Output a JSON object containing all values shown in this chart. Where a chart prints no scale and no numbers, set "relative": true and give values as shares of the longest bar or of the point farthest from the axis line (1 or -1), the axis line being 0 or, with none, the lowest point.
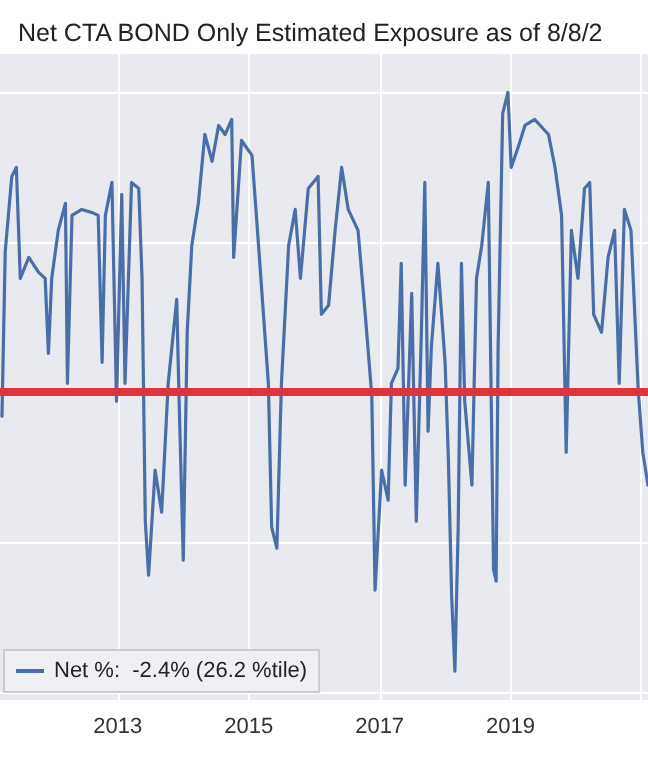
{
  "chart_data": {
    "type": "line",
    "title": "Net CTA BOND Only Estimated Exposure as of 8/8/2",
    "relative": true,
    "grid": true,
    "legend": "bottom left",
    "marker": "none",
    "line_style": "solid",
    "xlim": [
      2011.2,
      2021.1
    ],
    "xticks": [
      2013,
      2015,
      2017,
      2019,
      {
        "value": 2021,
        "label": null
      }
    ],
    "ref_lines": [
      {
        "axis": "y",
        "value": 0,
        "color": "#e0343c",
        "line_style": "solid"
      }
    ],
    "series": [
      {
        "name": "Net %:  -2.4% (26.2 %tile)",
        "color": "#4a6ea8",
        "x": [
          2011.23,
          2011.28,
          2011.38,
          2011.45,
          2011.51,
          2011.64,
          2011.79,
          2011.89,
          2011.94,
          2011.99,
          2012.09,
          2012.2,
          2012.23,
          2012.3,
          2012.45,
          2012.6,
          2012.7,
          2012.76,
          2012.81,
          2012.91,
          2012.98,
          2013.06,
          2013.11,
          2013.21,
          2013.32,
          2013.37,
          2013.42,
          2013.47,
          2013.57,
          2013.67,
          2013.77,
          2013.9,
          2013.93,
          2014.0,
          2014.06,
          2014.13,
          2014.23,
          2014.33,
          2014.44,
          2014.54,
          2014.64,
          2014.74,
          2014.77,
          2014.89,
          2015.05,
          2015.15,
          2015.3,
          2015.35,
          2015.43,
          2015.5,
          2015.61,
          2015.71,
          2015.79,
          2015.91,
          2016.06,
          2016.11,
          2016.22,
          2016.32,
          2016.42,
          2016.52,
          2016.67,
          2016.78,
          2016.88,
          2016.93,
          2017.03,
          2017.13,
          2017.18,
          2017.28,
          2017.33,
          2017.39,
          2017.49,
          2017.56,
          2017.64,
          2017.69,
          2017.74,
          2017.79,
          2017.89,
          2018.0,
          2018.05,
          2018.1,
          2018.15,
          2018.2,
          2018.25,
          2018.3,
          2018.41,
          2018.48,
          2018.56,
          2018.66,
          2018.74,
          2018.78,
          2018.81,
          2018.88,
          2018.96,
          2019.01,
          2019.12,
          2019.22,
          2019.37,
          2019.58,
          2019.68,
          2019.78,
          2019.85,
          2019.93,
          2020.03,
          2020.13,
          2020.21,
          2020.27,
          2020.39,
          2020.49,
          2020.59,
          2020.66,
          2020.74,
          2020.84,
          2020.95,
          2021.02,
          2021.1
        ],
        "values": [
          -0.08,
          0.47,
          0.72,
          0.75,
          0.38,
          0.45,
          0.4,
          0.38,
          0.13,
          0.38,
          0.54,
          0.63,
          0.03,
          0.59,
          0.61,
          0.6,
          0.59,
          0.1,
          0.59,
          0.7,
          -0.03,
          0.66,
          0.03,
          0.7,
          0.68,
          0.38,
          -0.43,
          -0.61,
          -0.26,
          -0.4,
          0.03,
          0.31,
          0.03,
          -0.56,
          0.2,
          0.49,
          0.63,
          0.86,
          0.77,
          0.89,
          0.86,
          0.91,
          0.45,
          0.84,
          0.79,
          0.49,
          0.03,
          -0.45,
          -0.52,
          0.03,
          0.49,
          0.61,
          0.38,
          0.68,
          0.72,
          0.26,
          0.29,
          0.54,
          0.75,
          0.61,
          0.54,
          0.26,
          -0.01,
          -0.66,
          -0.26,
          -0.36,
          0.03,
          0.08,
          0.43,
          -0.31,
          0.33,
          -0.43,
          0.22,
          0.7,
          -0.13,
          0.15,
          0.43,
          0.1,
          -0.22,
          -0.68,
          -0.93,
          -0.45,
          0.43,
          -0.03,
          -0.31,
          0.38,
          0.49,
          0.7,
          -0.59,
          -0.63,
          0.15,
          0.93,
          1,
          0.75,
          0.82,
          0.89,
          0.91,
          0.86,
          0.75,
          0.59,
          -0.2,
          0.54,
          0.38,
          0.68,
          0.7,
          0.26,
          0.2,
          0.45,
          0.54,
          0.03,
          0.61,
          0.54,
          0.01,
          -0.2,
          -0.31
        ]
      }
    ]
  }
}
